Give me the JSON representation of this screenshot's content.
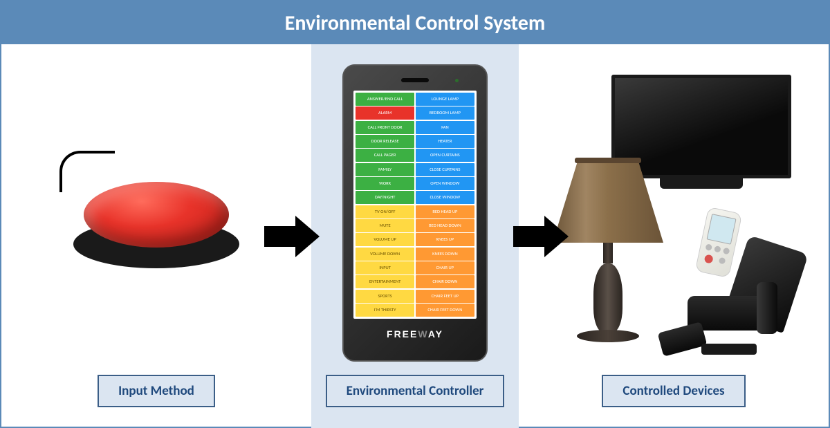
{
  "title": "Environmental Control System",
  "panels": {
    "input": {
      "label": "Input Method"
    },
    "controller": {
      "label": "Environmental Controller"
    },
    "devices": {
      "label": "Controlled Devices"
    }
  },
  "controller": {
    "brand": "FREEWAY",
    "colors": {
      "green": "#3cb043",
      "red": "#e8332a",
      "blue": "#2196f3",
      "yellow": "#ffd942",
      "orange": "#ff9933",
      "yellow_text": "#6b5200"
    },
    "buttons": [
      {
        "left": "ANSWER/END CALL",
        "left_color": "green",
        "right": "LOUNGE LAMP",
        "right_color": "blue"
      },
      {
        "left": "ALARM",
        "left_color": "red",
        "right": "BEDROOM LAMP",
        "right_color": "blue"
      },
      {
        "left": "CALL FRONT DOOR",
        "left_color": "green",
        "right": "FAN",
        "right_color": "blue"
      },
      {
        "left": "DOOR RELEASE",
        "left_color": "green",
        "right": "HEATER",
        "right_color": "blue"
      },
      {
        "left": "CALL PAGER",
        "left_color": "green",
        "right": "OPEN CURTAINS",
        "right_color": "blue"
      },
      {
        "left": "FAMILY",
        "left_color": "green",
        "right": "CLOSE CURTAINS",
        "right_color": "blue"
      },
      {
        "left": "WORK",
        "left_color": "green",
        "right": "OPEN WINDOW",
        "right_color": "blue"
      },
      {
        "left": "DAY/NIGHT",
        "left_color": "green",
        "right": "CLOSE WINDOW",
        "right_color": "blue"
      },
      {
        "left": "TV ON/OFF",
        "left_color": "yellow",
        "right": "BED HEAD UP",
        "right_color": "orange"
      },
      {
        "left": "MUTE",
        "left_color": "yellow",
        "right": "BED HEAD DOWN",
        "right_color": "orange"
      },
      {
        "left": "VOLUME UP",
        "left_color": "yellow",
        "right": "KNEES UP",
        "right_color": "orange"
      },
      {
        "left": "VOLUME DOWN",
        "left_color": "yellow",
        "right": "KNEES DOWN",
        "right_color": "orange"
      },
      {
        "left": "INPUT",
        "left_color": "yellow",
        "right": "CHAIR UP",
        "right_color": "orange"
      },
      {
        "left": "ENTERTAINMENT",
        "left_color": "yellow",
        "right": "CHAIR DOWN",
        "right_color": "orange"
      },
      {
        "left": "SPORTS",
        "left_color": "yellow",
        "right": "CHAIR FEET UP",
        "right_color": "orange"
      },
      {
        "left": "I'M THIRSTY",
        "left_color": "yellow",
        "right": "CHAIR FEET DOWN",
        "right_color": "orange"
      }
    ]
  },
  "style": {
    "title_bg": "#5b8ab8",
    "panel_label_bg": "#dbe5f1",
    "panel_label_border": "#3b5e87",
    "panel_label_text": "#1f497d",
    "center_bg": "#dbe5f1",
    "arrow_color": "#000000"
  }
}
